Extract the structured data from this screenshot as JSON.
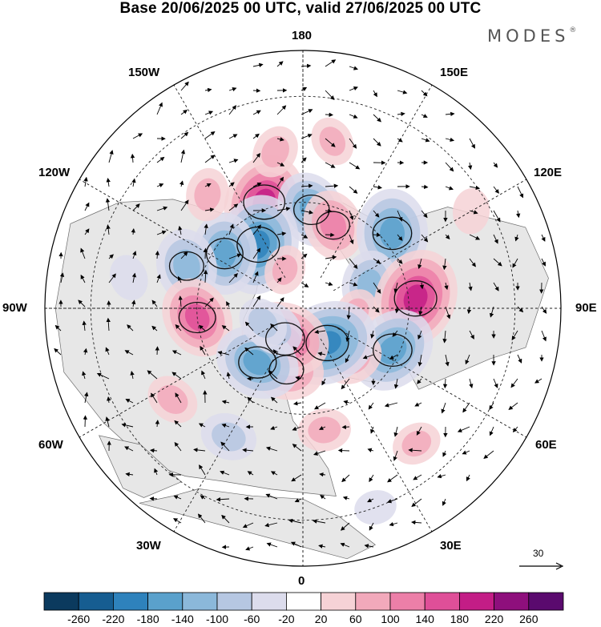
{
  "title": "Base 20/06/2025 00 UTC, valid 27/06/2025 00 UTC",
  "brand": {
    "name": "MODES",
    "mark": "®"
  },
  "map": {
    "projection": "north-polar-stereographic",
    "longitude_labels": {
      "lon_180": "180",
      "lon_150w": "150W",
      "lon_150e": "150E",
      "lon_120w": "120W",
      "lon_120e": "120E",
      "lon_90w": "90W",
      "lon_90e": "90E",
      "lon_60w": "60W",
      "lon_60e": "60E",
      "lon_30w": "30W",
      "lon_30e": "30E",
      "lon_0": "0"
    },
    "reference_vector": "30"
  },
  "colorbar": {
    "ticks": [
      "-260",
      "-220",
      "-180",
      "-140",
      "-100",
      "-60",
      "-20",
      "20",
      "60",
      "100",
      "140",
      "180",
      "220",
      "260"
    ],
    "colors": [
      "#0b3a5e",
      "#165d91",
      "#2e82bc",
      "#5aa1cc",
      "#8bb8da",
      "#b6c7e2",
      "#dcdcec",
      "#ffffff",
      "#f6d2d6",
      "#f2a9bb",
      "#ec7fa8",
      "#df4f98",
      "#c31d86",
      "#8e0f7c",
      "#5a0a6e"
    ]
  },
  "anomalies": [
    {
      "lon": 160,
      "lat": 58,
      "value": 190
    },
    {
      "lon": -175,
      "lat": 62,
      "value": -140
    },
    {
      "lon": -160,
      "lat": 65,
      "value": 120
    },
    {
      "lon": 145,
      "lat": 68,
      "value": -200
    },
    {
      "lon": 125,
      "lat": 63,
      "value": -150
    },
    {
      "lon": 110,
      "lat": 55,
      "value": -130
    },
    {
      "lon": 85,
      "lat": 60,
      "value": 150
    },
    {
      "lon": 140,
      "lat": 48,
      "value": 70
    },
    {
      "lon": 170,
      "lat": 45,
      "value": 70
    },
    {
      "lon": 155,
      "lat": 78,
      "value": 60
    },
    {
      "lon": -130,
      "lat": 57,
      "value": -170
    },
    {
      "lon": -110,
      "lat": 70,
      "value": -110
    },
    {
      "lon": -95,
      "lat": 58,
      "value": 200
    },
    {
      "lon": -85,
      "lat": 75,
      "value": 60
    },
    {
      "lon": -65,
      "lat": 62,
      "value": -170
    },
    {
      "lon": -45,
      "lat": 70,
      "value": 90
    },
    {
      "lon": -35,
      "lat": 78,
      "value": -200
    },
    {
      "lon": -10,
      "lat": 55,
      "value": 70
    },
    {
      "lon": 15,
      "lat": 72,
      "value": 130
    },
    {
      "lon": 30,
      "lat": 80,
      "value": 170
    },
    {
      "lon": 40,
      "lat": 70,
      "value": -160
    },
    {
      "lon": 55,
      "lat": 80,
      "value": -90
    },
    {
      "lon": 70,
      "lat": 78,
      "value": -70
    },
    {
      "lon": 55,
      "lat": 45,
      "value": 70
    },
    {
      "lon": 30,
      "lat": 48,
      "value": -80
    },
    {
      "lon": -40,
      "lat": 40,
      "value": 60
    },
    {
      "lon": -120,
      "lat": 35,
      "value": 50
    },
    {
      "lon": -170,
      "lat": 42,
      "value": 60
    },
    {
      "lon": 100,
      "lat": 40,
      "value": -50
    },
    {
      "lon": -20,
      "lat": 30,
      "value": -40
    }
  ]
}
